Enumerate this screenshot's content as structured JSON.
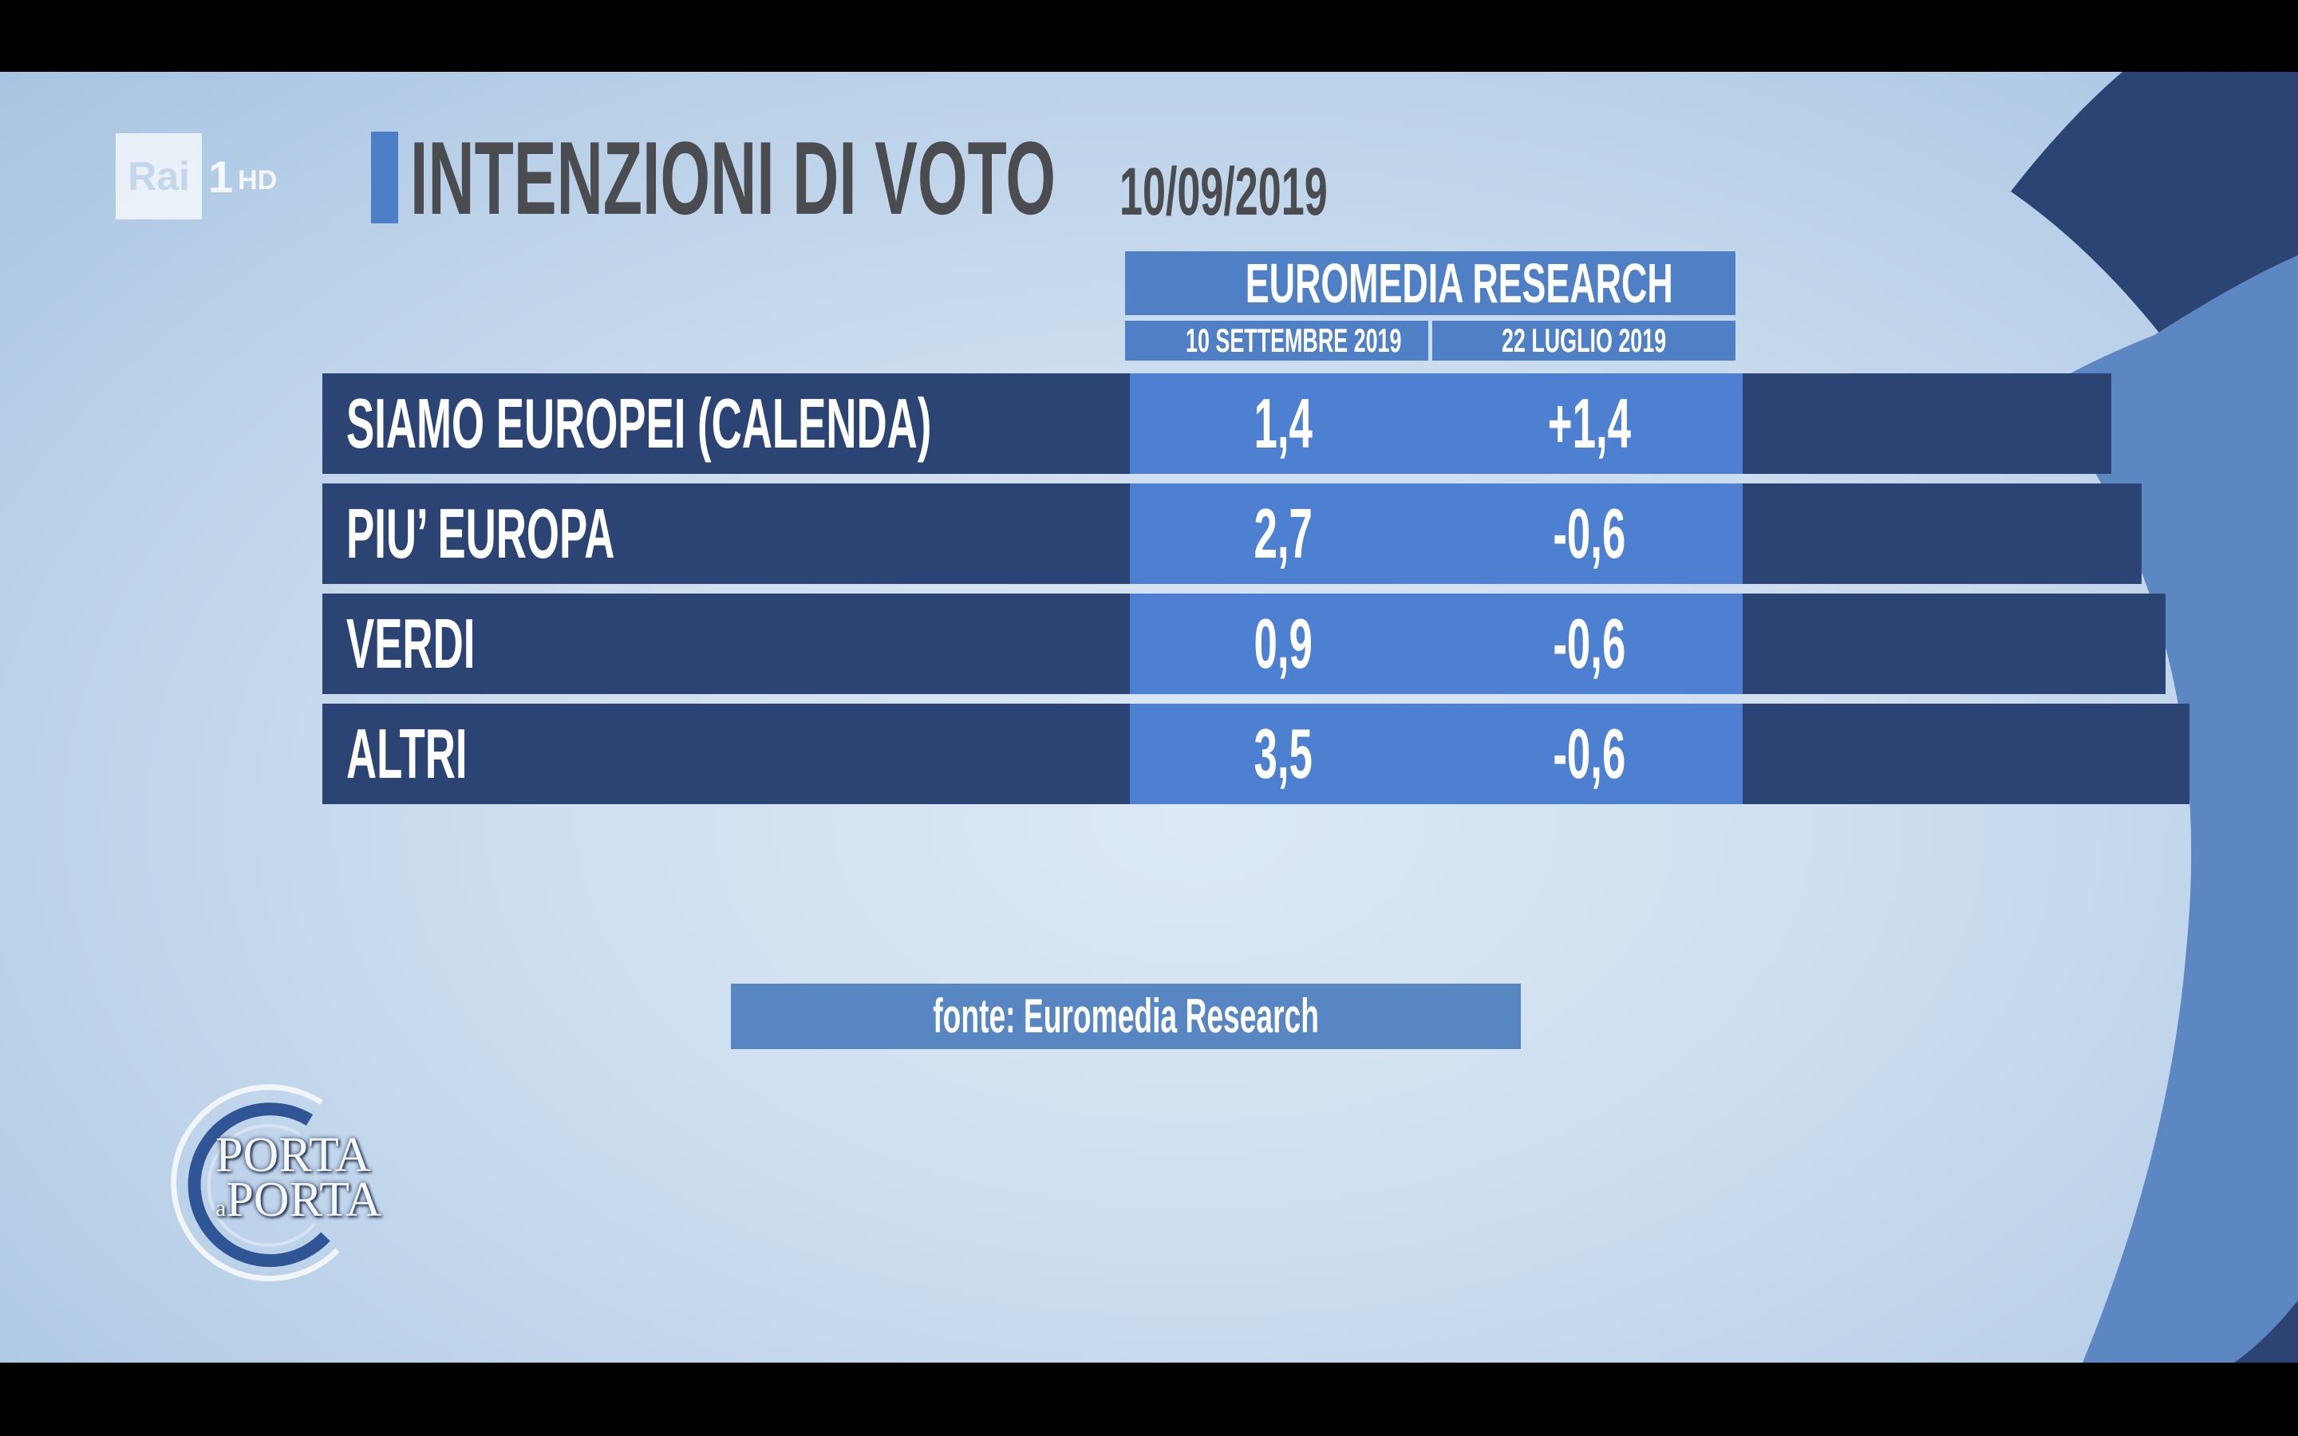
{
  "channel": {
    "brand": "Rai",
    "number": "1",
    "quality": "HD"
  },
  "title": "INTENZIONI DI VOTO",
  "date": "10/09/2019",
  "chart_data": {
    "type": "table",
    "source_header": "EUROMEDIA RESEARCH",
    "columns": [
      "10 SETTEMBRE 2019",
      "22 LUGLIO 2019"
    ],
    "rows": [
      {
        "label": "SIAMO EUROPEI (CALENDA)",
        "values": [
          "1,4",
          "+1,4"
        ]
      },
      {
        "label": "PIU’ EUROPA",
        "values": [
          "2,7",
          "-0,6"
        ]
      },
      {
        "label": "VERDI",
        "values": [
          "0,9",
          "-0,6"
        ]
      },
      {
        "label": "ALTRI",
        "values": [
          "3,5",
          "-0,6"
        ]
      }
    ]
  },
  "source_note": "fonte: Euromedia Research",
  "show_logo": {
    "line1": "PORTA",
    "connector": "a",
    "line2": "PORTA"
  },
  "colors": {
    "background": "#cfdff0",
    "row_dark": "#2b4473",
    "row_highlight": "#4d80d1",
    "title_text": "#4a4c50",
    "accent": "#4d7fc7"
  }
}
